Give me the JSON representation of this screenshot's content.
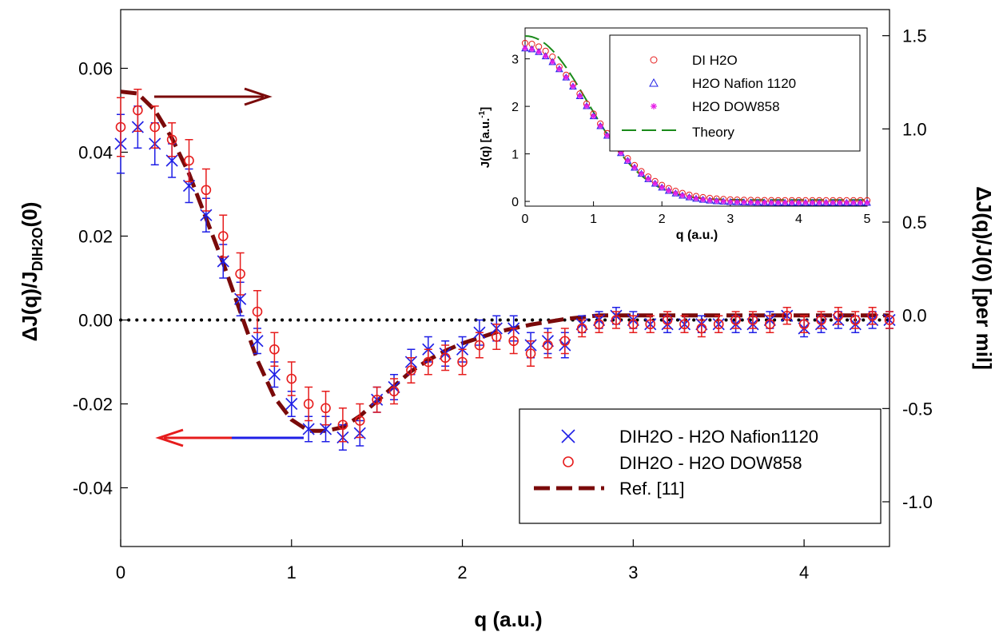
{
  "chart_data": [
    {
      "type": "scatter",
      "panel": "main",
      "xlabel": "q (a.u.)",
      "ylabel_left": "ΔJ(q)/J",
      "ylabel_left_sub": "DIH2O",
      "ylabel_left_suffix": "(0)",
      "ylabel_right": "ΔJ(q)/J(0) [per mil]",
      "xlim": [
        0,
        4.5
      ],
      "ylim_left": [
        -0.054,
        0.074
      ],
      "ylim_right": [
        -1.24,
        1.64
      ],
      "x_ticks": [
        0,
        1,
        2,
        3,
        4
      ],
      "x_tick_labels": [
        "0",
        "1",
        "2",
        "3",
        "4"
      ],
      "y_ticks_left": [
        -0.04,
        -0.02,
        0.0,
        0.02,
        0.04,
        0.06
      ],
      "y_tick_labels_left": [
        "-0.04",
        "-0.02",
        "0.00",
        "0.02",
        "0.04",
        "0.06"
      ],
      "y_ticks_right": [
        -1.0,
        -0.5,
        0.0,
        0.5,
        1.0,
        1.5
      ],
      "y_tick_labels_right": [
        "-1.0",
        "-0.5",
        "0.0",
        "0.5",
        "1.0",
        "1.5"
      ],
      "zero_line": true,
      "legend_position": "bottom-right",
      "series": [
        {
          "name": "DIH2O - H2O Nafion1120",
          "marker": "x",
          "color": "#1f1fe6",
          "x": [
            0.0,
            0.1,
            0.2,
            0.3,
            0.4,
            0.5,
            0.6,
            0.7,
            0.8,
            0.9,
            1.0,
            1.1,
            1.2,
            1.3,
            1.4,
            1.5,
            1.6,
            1.7,
            1.8,
            1.9,
            2.0,
            2.1,
            2.2,
            2.3,
            2.4,
            2.5,
            2.6,
            2.7,
            2.8,
            2.9,
            3.0,
            3.1,
            3.2,
            3.3,
            3.4,
            3.5,
            3.6,
            3.7,
            3.8,
            3.9,
            4.0,
            4.1,
            4.2,
            4.3,
            4.4,
            4.5
          ],
          "y": [
            0.042,
            0.046,
            0.042,
            0.038,
            0.032,
            0.025,
            0.014,
            0.005,
            -0.005,
            -0.013,
            -0.02,
            -0.026,
            -0.026,
            -0.028,
            -0.027,
            -0.019,
            -0.016,
            -0.01,
            -0.007,
            -0.008,
            -0.007,
            -0.003,
            -0.002,
            -0.002,
            -0.006,
            -0.005,
            -0.006,
            -0.001,
            0.0,
            0.001,
            0.0,
            -0.001,
            -0.001,
            -0.001,
            -0.001,
            -0.001,
            -0.001,
            -0.001,
            0.0,
            0.001,
            -0.002,
            -0.001,
            0.0,
            -0.001,
            0.0,
            0.0
          ],
          "err": [
            0.007,
            0.005,
            0.005,
            0.004,
            0.004,
            0.004,
            0.004,
            0.004,
            0.003,
            0.003,
            0.003,
            0.003,
            0.003,
            0.003,
            0.003,
            0.003,
            0.003,
            0.003,
            0.003,
            0.003,
            0.003,
            0.003,
            0.003,
            0.003,
            0.003,
            0.003,
            0.003,
            0.002,
            0.002,
            0.002,
            0.002,
            0.002,
            0.002,
            0.002,
            0.002,
            0.002,
            0.002,
            0.002,
            0.002,
            0.002,
            0.002,
            0.002,
            0.002,
            0.002,
            0.002,
            0.002
          ]
        },
        {
          "name": "DIH2O - H2O DOW858",
          "marker": "circle",
          "color": "#e61c1c",
          "x": [
            0.0,
            0.1,
            0.2,
            0.3,
            0.4,
            0.5,
            0.6,
            0.7,
            0.8,
            0.9,
            1.0,
            1.1,
            1.2,
            1.3,
            1.4,
            1.5,
            1.6,
            1.7,
            1.8,
            1.9,
            2.0,
            2.1,
            2.2,
            2.3,
            2.4,
            2.5,
            2.6,
            2.7,
            2.8,
            2.9,
            3.0,
            3.1,
            3.2,
            3.3,
            3.4,
            3.5,
            3.6,
            3.7,
            3.8,
            3.9,
            4.0,
            4.1,
            4.2,
            4.3,
            4.4,
            4.5
          ],
          "y": [
            0.046,
            0.05,
            0.046,
            0.043,
            0.038,
            0.031,
            0.02,
            0.011,
            0.002,
            -0.007,
            -0.014,
            -0.02,
            -0.021,
            -0.025,
            -0.024,
            -0.019,
            -0.017,
            -0.012,
            -0.01,
            -0.009,
            -0.01,
            -0.006,
            -0.004,
            -0.005,
            -0.008,
            -0.006,
            -0.005,
            -0.002,
            -0.001,
            0.0,
            -0.001,
            -0.001,
            0.0,
            -0.001,
            -0.002,
            -0.001,
            0.0,
            0.0,
            -0.001,
            0.001,
            -0.001,
            0.0,
            0.001,
            0.0,
            0.001,
            0.0
          ],
          "err": [
            0.007,
            0.005,
            0.005,
            0.004,
            0.005,
            0.005,
            0.005,
            0.005,
            0.005,
            0.004,
            0.004,
            0.004,
            0.004,
            0.004,
            0.004,
            0.003,
            0.003,
            0.003,
            0.003,
            0.003,
            0.003,
            0.003,
            0.003,
            0.003,
            0.003,
            0.003,
            0.003,
            0.002,
            0.002,
            0.002,
            0.002,
            0.002,
            0.002,
            0.002,
            0.002,
            0.002,
            0.002,
            0.002,
            0.002,
            0.002,
            0.002,
            0.002,
            0.002,
            0.002,
            0.002,
            0.002
          ]
        },
        {
          "name": "Ref. [11]",
          "marker": "dashed-line",
          "color": "#7a0a0a",
          "axis": "right",
          "x": [
            0.0,
            0.1,
            0.2,
            0.3,
            0.4,
            0.5,
            0.6,
            0.7,
            0.8,
            0.9,
            1.0,
            1.1,
            1.2,
            1.3,
            1.4,
            1.5,
            1.6,
            1.7,
            1.8,
            1.9,
            2.0,
            2.2,
            2.4,
            2.6,
            2.8,
            3.0,
            3.2,
            3.5,
            4.0,
            4.5
          ],
          "y": [
            1.2,
            1.19,
            1.1,
            0.95,
            0.76,
            0.52,
            0.28,
            0.02,
            -0.24,
            -0.44,
            -0.56,
            -0.62,
            -0.62,
            -0.6,
            -0.54,
            -0.46,
            -0.38,
            -0.3,
            -0.24,
            -0.19,
            -0.15,
            -0.09,
            -0.05,
            -0.02,
            0.0,
            0.0,
            0.0,
            0.0,
            0.0,
            0.0
          ]
        }
      ],
      "annotations": [
        {
          "kind": "arrow",
          "points_to": "right axis",
          "color": "#7a0a0a"
        },
        {
          "kind": "arrow",
          "points_to": "left axis",
          "color": "#e61c1c"
        }
      ]
    },
    {
      "type": "scatter",
      "panel": "inset",
      "xlabel": "q (a.u.)",
      "ylabel": "J(q) [a.u.",
      "ylabel_sup": "-1",
      "ylabel_suffix": "]",
      "xlim": [
        0,
        5
      ],
      "ylim": [
        -0.1,
        3.65
      ],
      "x_ticks": [
        0,
        1,
        2,
        3,
        4,
        5
      ],
      "x_tick_labels": [
        "0",
        "1",
        "2",
        "3",
        "4",
        "5"
      ],
      "y_ticks": [
        0,
        1,
        2,
        3
      ],
      "y_tick_labels": [
        "0",
        "1",
        "2",
        "3"
      ],
      "legend_position": "top-right",
      "series": [
        {
          "name": "DI H2O",
          "marker": "circle",
          "color": "#e61c1c"
        },
        {
          "name": "H2O Nafion 1120",
          "marker": "triangle",
          "color": "#1f1fe6"
        },
        {
          "name": "H2O DOW858",
          "marker": "star",
          "color": "#e61ce6"
        },
        {
          "name": "Theory",
          "marker": "dashed-line",
          "color": "#1a8a1a"
        }
      ]
    }
  ]
}
